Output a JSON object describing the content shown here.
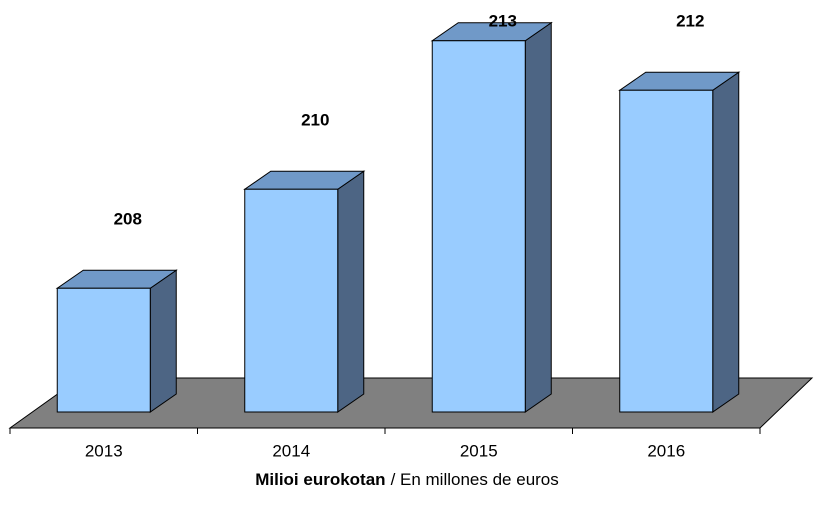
{
  "chart_data": {
    "type": "bar3d",
    "categories": [
      "2013",
      "2014",
      "2015",
      "2016"
    ],
    "values": [
      208,
      210,
      213,
      212
    ],
    "color": "#99ccff",
    "ylim": [
      205.5,
      213.5
    ],
    "xlabel": [
      "Milioi eurokotan",
      "/ En millones de euros"
    ]
  }
}
